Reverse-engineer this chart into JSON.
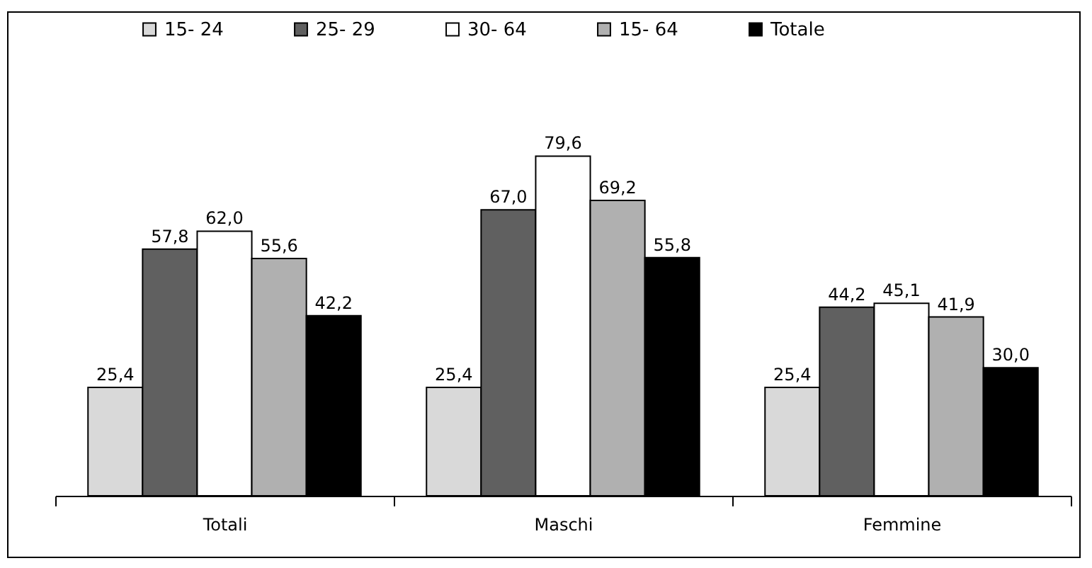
{
  "chart_data": {
    "type": "bar",
    "categories": [
      "Totali",
      "Maschi",
      "Femmine"
    ],
    "series": [
      {
        "name": "15- 24",
        "color": "#d9d9d9",
        "values": [
          25.4,
          25.4,
          25.4
        ],
        "value_labels": [
          "25,4",
          "25,4",
          "25,4"
        ]
      },
      {
        "name": "25- 29",
        "color": "#606060",
        "values": [
          57.8,
          67.0,
          44.2
        ],
        "value_labels": [
          "57,8",
          "67,0",
          "44,2"
        ]
      },
      {
        "name": "30- 64",
        "color": "#ffffff",
        "values": [
          62.0,
          79.6,
          45.1
        ],
        "value_labels": [
          "62,0",
          "79,6",
          "45,1"
        ]
      },
      {
        "name": "15- 64",
        "color": "#b0b0b0",
        "values": [
          55.6,
          69.2,
          41.9
        ],
        "value_labels": [
          "55,6",
          "69,2",
          "41,9"
        ]
      },
      {
        "name": "Totale",
        "color": "#000000",
        "values": [
          42.2,
          55.8,
          30.0
        ],
        "value_labels": [
          "42,2",
          "55,8",
          "30,0"
        ]
      }
    ],
    "legend": "top",
    "grid": false
  }
}
